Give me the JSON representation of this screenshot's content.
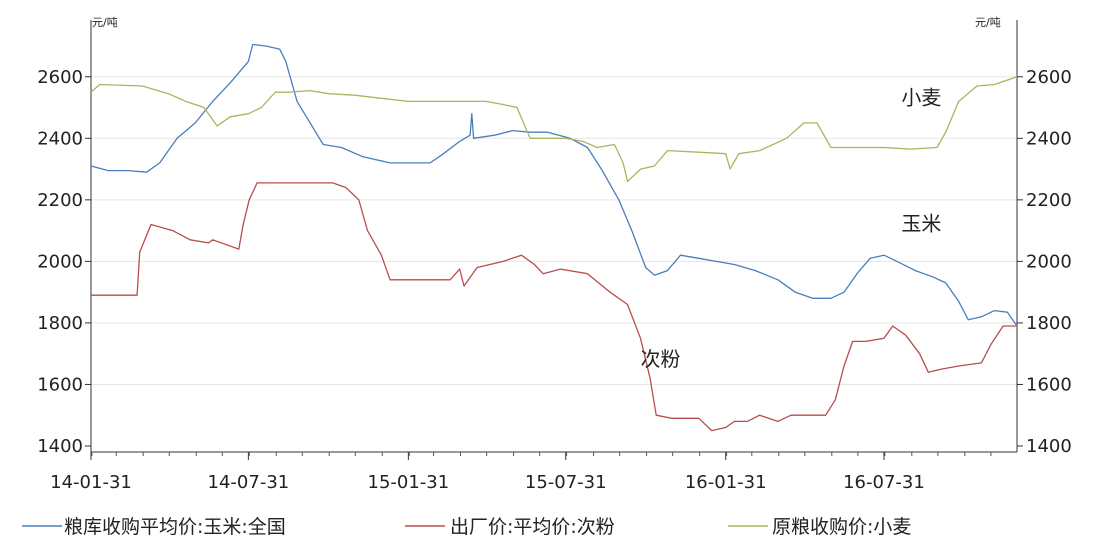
{
  "chart_data": {
    "type": "line",
    "left_unit": "元/吨",
    "right_unit": "元/吨",
    "ylim": [
      1400,
      2700
    ],
    "yticks": [
      1400,
      1600,
      1800,
      2000,
      2200,
      2400,
      2600
    ],
    "xlim": [
      "2014-01-31",
      "2016-12-31"
    ],
    "xticks": [
      "14-01-31",
      "14-07-31",
      "15-01-31",
      "15-07-31",
      "16-01-31",
      "16-07-31"
    ],
    "xtick_dates": [
      "2014-01-31",
      "2014-07-31",
      "2015-01-31",
      "2015-07-31",
      "2016-01-31",
      "2016-07-31"
    ],
    "grid": "horizontal",
    "legend_position": "bottom",
    "annotations": [
      {
        "text": "小麦",
        "x": "2016-08-20",
        "y": 2510
      },
      {
        "text": "玉米",
        "x": "2016-08-20",
        "y": 2100
      },
      {
        "text": "次粉",
        "x": "2015-10-25",
        "y": 1660
      }
    ],
    "series": [
      {
        "name": "粮库收购平均价:玉米:全国",
        "color": "#4a7ebb",
        "axis": "left",
        "points": [
          [
            "2014-01-31",
            2310
          ],
          [
            "2014-02-20",
            2295
          ],
          [
            "2014-03-15",
            2295
          ],
          [
            "2014-04-05",
            2290
          ],
          [
            "2014-04-20",
            2320
          ],
          [
            "2014-05-10",
            2400
          ],
          [
            "2014-05-31",
            2450
          ],
          [
            "2014-06-20",
            2520
          ],
          [
            "2014-07-10",
            2580
          ],
          [
            "2014-07-31",
            2650
          ],
          [
            "2014-08-05",
            2705
          ],
          [
            "2014-08-20",
            2700
          ],
          [
            "2014-09-05",
            2690
          ],
          [
            "2014-09-12",
            2650
          ],
          [
            "2014-09-25",
            2520
          ],
          [
            "2014-10-10",
            2450
          ],
          [
            "2014-10-25",
            2380
          ],
          [
            "2014-11-15",
            2370
          ],
          [
            "2014-12-10",
            2340
          ],
          [
            "2015-01-10",
            2320
          ],
          [
            "2015-02-05",
            2320
          ],
          [
            "2015-02-25",
            2320
          ],
          [
            "2015-03-10",
            2345
          ],
          [
            "2015-03-31",
            2390
          ],
          [
            "2015-04-12",
            2410
          ],
          [
            "2015-04-14",
            2480
          ],
          [
            "2015-04-16",
            2400
          ],
          [
            "2015-05-10",
            2410
          ],
          [
            "2015-05-31",
            2425
          ],
          [
            "2015-06-20",
            2420
          ],
          [
            "2015-07-10",
            2420
          ],
          [
            "2015-08-05",
            2400
          ],
          [
            "2015-08-25",
            2370
          ],
          [
            "2015-09-10",
            2300
          ],
          [
            "2015-09-30",
            2200
          ],
          [
            "2015-10-15",
            2100
          ],
          [
            "2015-10-31",
            1980
          ],
          [
            "2015-11-10",
            1955
          ],
          [
            "2015-11-25",
            1970
          ],
          [
            "2015-12-10",
            2020
          ],
          [
            "2015-12-31",
            2010
          ],
          [
            "2016-01-20",
            2000
          ],
          [
            "2016-02-10",
            1990
          ],
          [
            "2016-03-05",
            1970
          ],
          [
            "2016-03-31",
            1940
          ],
          [
            "2016-04-20",
            1900
          ],
          [
            "2016-05-10",
            1880
          ],
          [
            "2016-05-31",
            1880
          ],
          [
            "2016-06-15",
            1900
          ],
          [
            "2016-06-30",
            1960
          ],
          [
            "2016-07-15",
            2010
          ],
          [
            "2016-07-31",
            2020
          ],
          [
            "2016-08-15",
            2000
          ],
          [
            "2016-09-05",
            1970
          ],
          [
            "2016-09-25",
            1950
          ],
          [
            "2016-10-10",
            1930
          ],
          [
            "2016-10-25",
            1870
          ],
          [
            "2016-11-05",
            1810
          ],
          [
            "2016-11-20",
            1820
          ],
          [
            "2016-12-05",
            1840
          ],
          [
            "2016-12-20",
            1835
          ],
          [
            "2016-12-31",
            1790
          ]
        ]
      },
      {
        "name": "出厂价:平均价:次粉",
        "color": "#b94d4d",
        "axis": "left",
        "points": [
          [
            "2014-01-31",
            1890
          ],
          [
            "2014-03-25",
            1890
          ],
          [
            "2014-03-28",
            2030
          ],
          [
            "2014-04-10",
            2120
          ],
          [
            "2014-05-05",
            2100
          ],
          [
            "2014-05-25",
            2070
          ],
          [
            "2014-06-15",
            2060
          ],
          [
            "2014-06-20",
            2070
          ],
          [
            "2014-07-20",
            2040
          ],
          [
            "2014-07-25",
            2120
          ],
          [
            "2014-08-01",
            2200
          ],
          [
            "2014-08-10",
            2255
          ],
          [
            "2014-11-05",
            2255
          ],
          [
            "2014-11-20",
            2240
          ],
          [
            "2014-12-05",
            2200
          ],
          [
            "2014-12-15",
            2100
          ],
          [
            "2014-12-31",
            2020
          ],
          [
            "2015-01-10",
            1940
          ],
          [
            "2015-03-20",
            1940
          ],
          [
            "2015-03-31",
            1975
          ],
          [
            "2015-04-05",
            1920
          ],
          [
            "2015-04-20",
            1980
          ],
          [
            "2015-05-20",
            2000
          ],
          [
            "2015-06-10",
            2020
          ],
          [
            "2015-06-25",
            1990
          ],
          [
            "2015-07-05",
            1960
          ],
          [
            "2015-07-25",
            1975
          ],
          [
            "2015-08-25",
            1960
          ],
          [
            "2015-09-20",
            1900
          ],
          [
            "2015-10-10",
            1860
          ],
          [
            "2015-10-25",
            1750
          ],
          [
            "2015-11-05",
            1620
          ],
          [
            "2015-11-12",
            1500
          ],
          [
            "2015-11-30",
            1490
          ],
          [
            "2015-12-31",
            1490
          ],
          [
            "2016-01-15",
            1450
          ],
          [
            "2016-01-31",
            1460
          ],
          [
            "2016-02-10",
            1480
          ],
          [
            "2016-02-25",
            1480
          ],
          [
            "2016-03-10",
            1500
          ],
          [
            "2016-03-31",
            1480
          ],
          [
            "2016-04-15",
            1500
          ],
          [
            "2016-05-05",
            1500
          ],
          [
            "2016-05-25",
            1500
          ],
          [
            "2016-06-05",
            1550
          ],
          [
            "2016-06-15",
            1660
          ],
          [
            "2016-06-25",
            1740
          ],
          [
            "2016-07-10",
            1740
          ],
          [
            "2016-07-31",
            1750
          ],
          [
            "2016-08-10",
            1790
          ],
          [
            "2016-08-25",
            1760
          ],
          [
            "2016-09-10",
            1700
          ],
          [
            "2016-09-20",
            1640
          ],
          [
            "2016-10-05",
            1650
          ],
          [
            "2016-10-25",
            1660
          ],
          [
            "2016-11-20",
            1670
          ],
          [
            "2016-12-01",
            1730
          ],
          [
            "2016-12-15",
            1790
          ],
          [
            "2016-12-31",
            1790
          ]
        ]
      },
      {
        "name": "原粮收购价:小麦",
        "color": "#a7b85c",
        "axis": "left",
        "points": [
          [
            "2014-01-31",
            2550
          ],
          [
            "2014-02-10",
            2575
          ],
          [
            "2014-03-31",
            2570
          ],
          [
            "2014-04-30",
            2545
          ],
          [
            "2014-05-20",
            2520
          ],
          [
            "2014-06-10",
            2500
          ],
          [
            "2014-06-25",
            2440
          ],
          [
            "2014-07-10",
            2470
          ],
          [
            "2014-07-31",
            2480
          ],
          [
            "2014-08-15",
            2500
          ],
          [
            "2014-08-31",
            2550
          ],
          [
            "2014-09-15",
            2550
          ],
          [
            "2014-10-10",
            2555
          ],
          [
            "2014-10-31",
            2545
          ],
          [
            "2014-11-30",
            2540
          ],
          [
            "2014-12-31",
            2530
          ],
          [
            "2015-01-31",
            2520
          ],
          [
            "2015-02-28",
            2520
          ],
          [
            "2015-03-31",
            2520
          ],
          [
            "2015-04-30",
            2520
          ],
          [
            "2015-05-20",
            2510
          ],
          [
            "2015-06-05",
            2500
          ],
          [
            "2015-06-20",
            2400
          ],
          [
            "2015-07-31",
            2400
          ],
          [
            "2015-08-20",
            2390
          ],
          [
            "2015-09-05",
            2370
          ],
          [
            "2015-09-25",
            2380
          ],
          [
            "2015-10-05",
            2320
          ],
          [
            "2015-10-10",
            2260
          ],
          [
            "2015-10-25",
            2300
          ],
          [
            "2015-11-10",
            2310
          ],
          [
            "2015-11-25",
            2360
          ],
          [
            "2015-12-31",
            2355
          ],
          [
            "2016-01-31",
            2350
          ],
          [
            "2016-02-05",
            2300
          ],
          [
            "2016-02-15",
            2350
          ],
          [
            "2016-03-10",
            2360
          ],
          [
            "2016-04-10",
            2400
          ],
          [
            "2016-04-30",
            2450
          ],
          [
            "2016-05-15",
            2450
          ],
          [
            "2016-05-31",
            2370
          ],
          [
            "2016-06-30",
            2370
          ],
          [
            "2016-07-31",
            2370
          ],
          [
            "2016-08-31",
            2365
          ],
          [
            "2016-09-30",
            2370
          ],
          [
            "2016-10-10",
            2420
          ],
          [
            "2016-10-25",
            2520
          ],
          [
            "2016-11-15",
            2570
          ],
          [
            "2016-12-05",
            2575
          ],
          [
            "2016-12-31",
            2600
          ]
        ]
      }
    ]
  }
}
